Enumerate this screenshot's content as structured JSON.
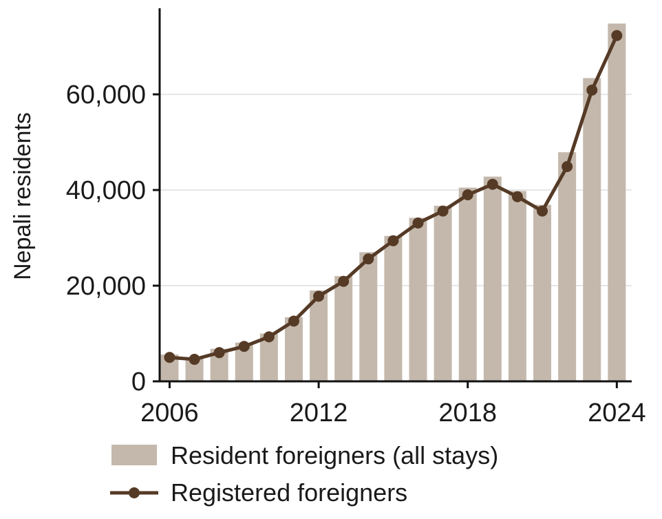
{
  "chart_data": {
    "type": "bar",
    "x": [
      2006,
      2007,
      2008,
      2009,
      2010,
      2011,
      2012,
      2013,
      2014,
      2015,
      2016,
      2017,
      2018,
      2019,
      2020,
      2021,
      2022,
      2023,
      2024
    ],
    "series": [
      {
        "name": "Resident foreigners (all stays)",
        "type": "bar",
        "color": "#c4b8ac",
        "values": [
          5600,
          5000,
          6800,
          8100,
          10000,
          13400,
          19000,
          22000,
          27000,
          30400,
          34200,
          36700,
          40500,
          42800,
          39800,
          36900,
          47900,
          63400,
          74800
        ]
      },
      {
        "name": "Registered foreigners",
        "type": "line",
        "color": "#553a26",
        "values": [
          5000,
          4600,
          6000,
          7300,
          9300,
          12600,
          17800,
          20900,
          25600,
          29400,
          33100,
          35600,
          39000,
          41200,
          38600,
          35600,
          44900,
          60900,
          72300
        ]
      }
    ],
    "ylabel": "Nepali residents",
    "xlabel": "",
    "title": "",
    "ylim": [
      0,
      78000
    ],
    "xlim": [
      2005.6,
      2024.6
    ],
    "yticks": [
      0,
      20000,
      40000,
      60000
    ],
    "ytick_labels": [
      "0",
      "20,000",
      "40,000",
      "60,000"
    ],
    "xticks": [
      2006,
      2012,
      2018,
      2024
    ],
    "xtick_labels": [
      "2006",
      "2012",
      "2018",
      "2024"
    ],
    "grid": "horizontal",
    "legend": "bottom"
  }
}
